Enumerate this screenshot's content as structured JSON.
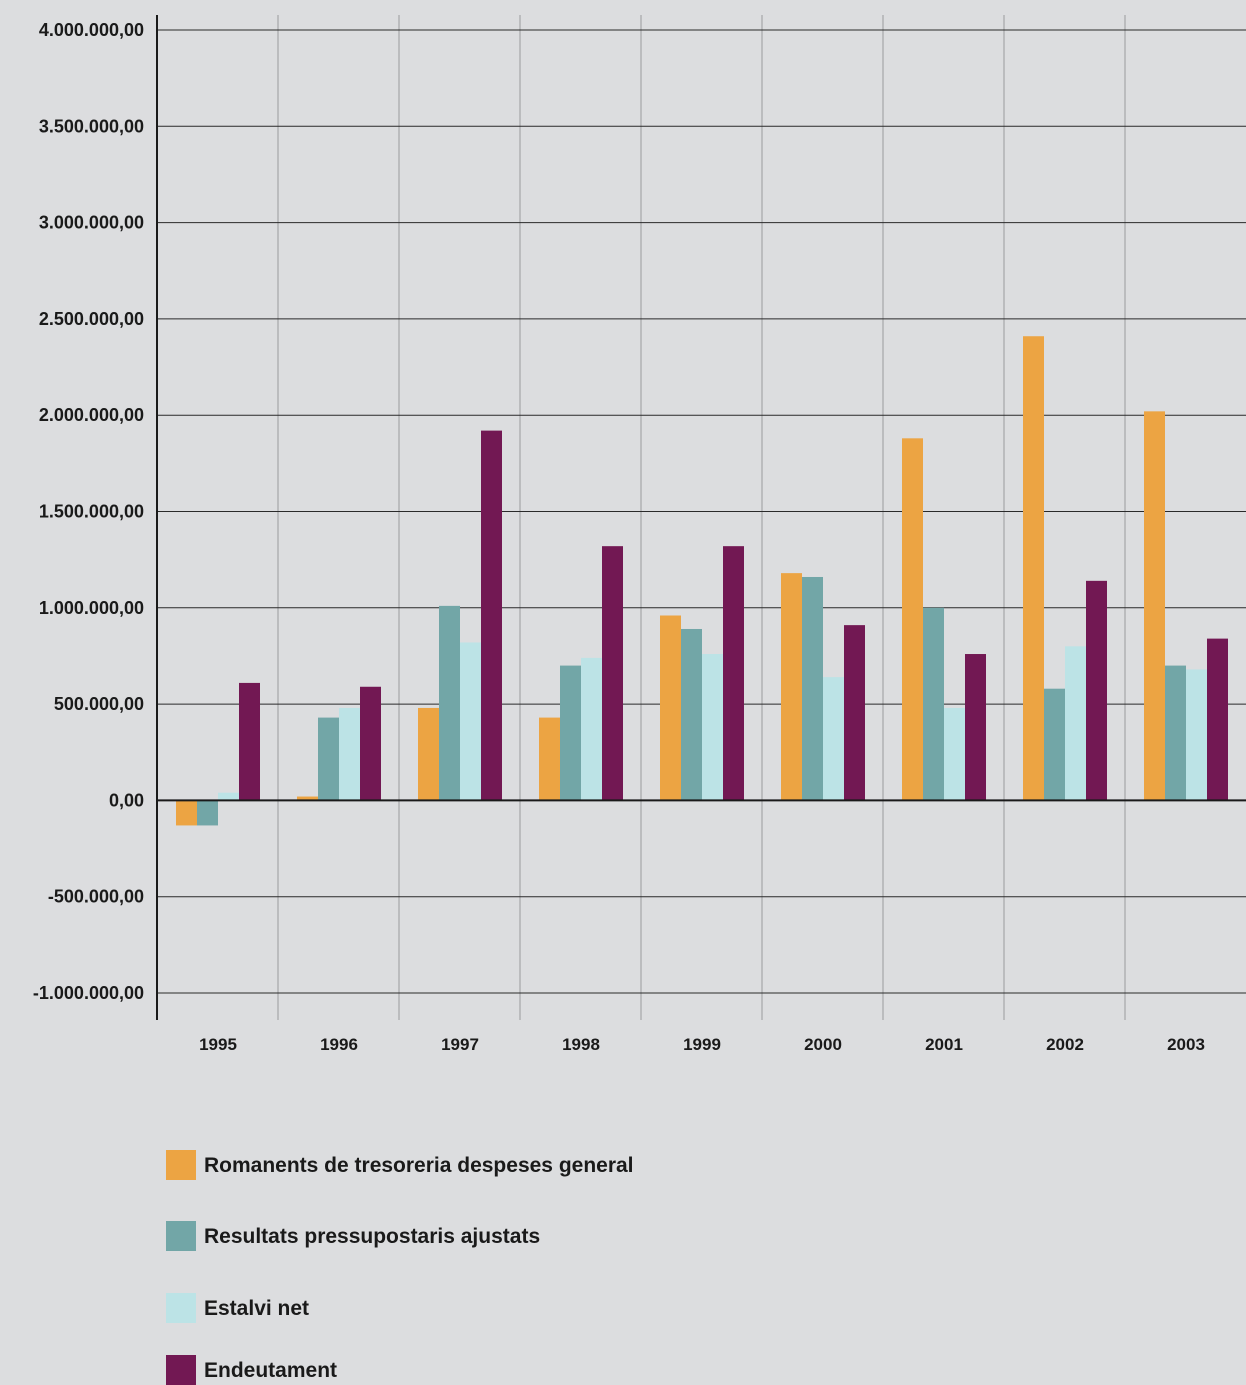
{
  "chart_data": {
    "type": "bar",
    "title": "",
    "xlabel": "",
    "ylabel": "",
    "ylim": [
      -1000000,
      4000000
    ],
    "y_ticks": [
      -1000000,
      -500000,
      0,
      500000,
      1000000,
      1500000,
      2000000,
      2500000,
      3000000,
      3500000,
      4000000
    ],
    "y_tick_labels": [
      "-1.000.000,00",
      "-500.000,00",
      "0,00",
      "500.000,00",
      "1.000.000,00",
      "1.500.000,00",
      "2.000.000,00",
      "2.500.000,00",
      "3.000.000,00",
      "3.500.000,00",
      "4.000.000,00"
    ],
    "grid": true,
    "legend_position": "bottom",
    "categories": [
      "1995",
      "1996",
      "1997",
      "1998",
      "1999",
      "2000",
      "2001",
      "2002",
      "2003"
    ],
    "series": [
      {
        "name": "Romanents de tresoreria despeses general",
        "color": "#eca443",
        "values": [
          -130000,
          20000,
          480000,
          430000,
          960000,
          1180000,
          1880000,
          2410000,
          2020000
        ]
      },
      {
        "name": "Resultats pressupostaris ajustats",
        "color": "#72a6a7",
        "values": [
          -130000,
          430000,
          1010000,
          700000,
          890000,
          1160000,
          1000000,
          580000,
          700000
        ]
      },
      {
        "name": "Estalvi net",
        "color": "#bce3e6",
        "values": [
          40000,
          480000,
          820000,
          740000,
          760000,
          640000,
          480000,
          800000,
          680000
        ]
      },
      {
        "name": "Endeutament",
        "color": "#721853",
        "values": [
          610000,
          590000,
          1920000,
          1320000,
          1320000,
          910000,
          760000,
          1140000,
          840000
        ]
      }
    ]
  }
}
